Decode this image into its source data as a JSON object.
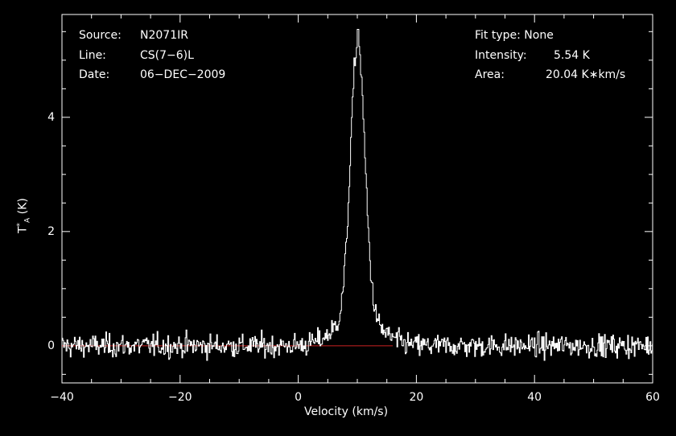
{
  "header": {
    "source_key": "Source:",
    "source_val": "N2071IR",
    "line_key": "Line:",
    "line_val": "CS(7−6)L",
    "date_key": "Date:",
    "date_val": "06−DEC−2009",
    "fit_text": "Fit type: None",
    "intensity_key": "Intensity:",
    "intensity_val": "5.54 K",
    "area_key": "Area:",
    "area_val": "20.04 K∗km/s"
  },
  "chart_data": {
    "type": "line",
    "xlabel": "Velocity (km/s)",
    "ylabel_main": "T",
    "ylabel_sup": "*",
    "ylabel_sub": "A",
    "ylabel_unit": " (K)",
    "xlim": [
      -40,
      60
    ],
    "ylim": [
      -0.65,
      5.8
    ],
    "xticks": [
      -40,
      -20,
      0,
      20,
      40,
      60
    ],
    "xtick_labels": [
      "−40",
      "−20",
      "0",
      "20",
      "40",
      "60"
    ],
    "yticks": [
      0,
      2,
      4
    ],
    "ytick_labels": [
      "0",
      "2",
      "4"
    ],
    "baseline": {
      "value": 0,
      "from": -40,
      "to": 16,
      "color": "#cc2222"
    },
    "series": [
      {
        "line_color": "#ffffff",
        "profile": {
          "peak_velocity": 10,
          "peak": 5.54,
          "core_width": 1.2,
          "wing_amplitude": 0.55,
          "wing_width": 3.5,
          "noise_rms": 0.1,
          "channel_width": 0.14
        }
      }
    ]
  },
  "colors": {
    "background": "#000000",
    "foreground": "#ffffff",
    "baseline": "#cc2222"
  }
}
